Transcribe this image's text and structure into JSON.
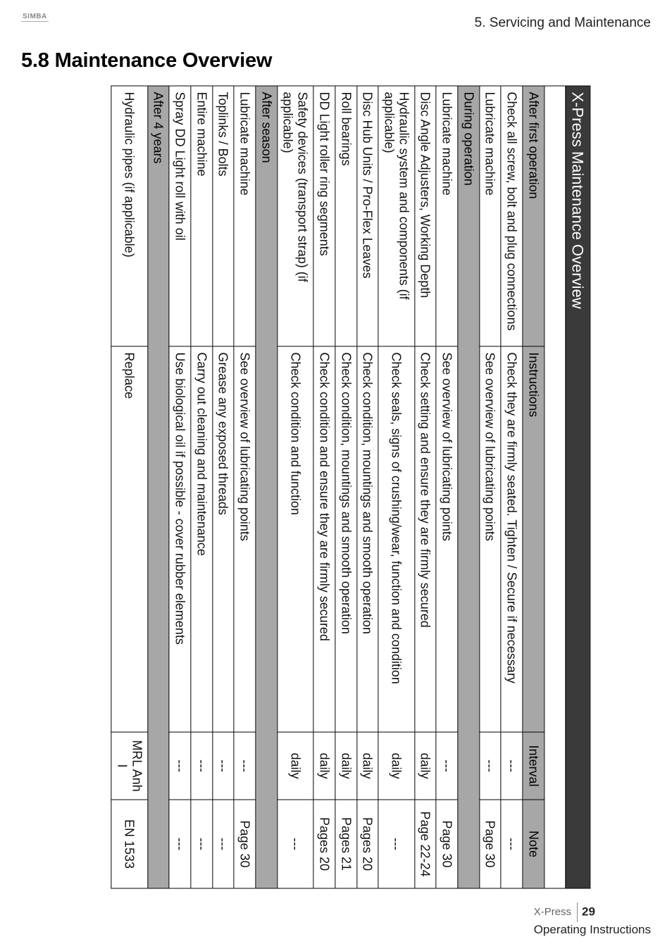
{
  "header": {
    "logo_text": "SIMBA",
    "chapter": "5. Servicing and Maintenance",
    "section_title": "5.8 Maintenance Overview"
  },
  "table": {
    "title": "X-Press Maintenance Overview",
    "headers": {
      "instructions": "Instructions",
      "interval": "Interval",
      "note": "Note"
    },
    "groups": [
      {
        "label": "After first operation",
        "rows": [
          {
            "item": "Check all screw, bolt and plug connections",
            "instr": "Check they are firmly seated. Tighten / Secure if necessary",
            "interval": "---",
            "note": "---"
          },
          {
            "item": "Lubricate machine",
            "instr": "See overview of lubricating points",
            "interval": "---",
            "note": "Page 30"
          }
        ]
      },
      {
        "label": "During operation",
        "rows": [
          {
            "item": "Lubricate machine",
            "instr": "See overview of lubricating points",
            "interval": "---",
            "note": "Page 30"
          },
          {
            "item": "Disc Angle Adjusters, Working Depth",
            "instr": "Check setting and ensure they are firmly secured",
            "interval": "daily",
            "note": "Page 22-24"
          },
          {
            "item": "Hydraulic system and components (if applicable)",
            "instr": "Check seals, signs of crushing/wear, function and condition",
            "interval": "daily",
            "note": "---"
          },
          {
            "item": "Disc Hub Units / Pro-Flex Leaves",
            "instr": "Check condition, mountings and smooth operation",
            "interval": "daily",
            "note": "Pages 20"
          },
          {
            "item": "Roll bearings",
            "instr": "Check condition, mountings and smooth operation",
            "interval": "daily",
            "note": "Pages 21"
          },
          {
            "item": "DD Light roller ring segments",
            "instr": "Check condition and ensure they are firmly secured",
            "interval": "daily",
            "note": "Pages 20"
          },
          {
            "item": "Safety devices (transport strap) (if applicable)",
            "instr": "Check condition and function",
            "interval": "daily",
            "note": "---"
          }
        ]
      },
      {
        "label": "After season",
        "rows": [
          {
            "item": "Lubricate machine",
            "instr": "See overview of lubricating points",
            "interval": "---",
            "note": "Page 30"
          },
          {
            "item": "Toplinks / Bolts",
            "instr": "Grease any exposed threads",
            "interval": "---",
            "note": "---"
          },
          {
            "item": "Entire machine",
            "instr": "Carry out cleaning and maintenance",
            "interval": "---",
            "note": "---"
          },
          {
            "item": "Spray DD Light roll with oil",
            "instr": "Use biological oil if possible - cover rubber elements",
            "interval": "---",
            "note": "---"
          }
        ]
      },
      {
        "label": "After 4 years",
        "rows": [
          {
            "item": "Hydraulic pipes (if applicable)",
            "instr": "Replace",
            "interval": "MRL Anh I",
            "note": "EN 1533"
          }
        ]
      }
    ]
  },
  "footer": {
    "product": "X-Press",
    "page_number": "29",
    "doc_label": "Operating Instructions"
  }
}
